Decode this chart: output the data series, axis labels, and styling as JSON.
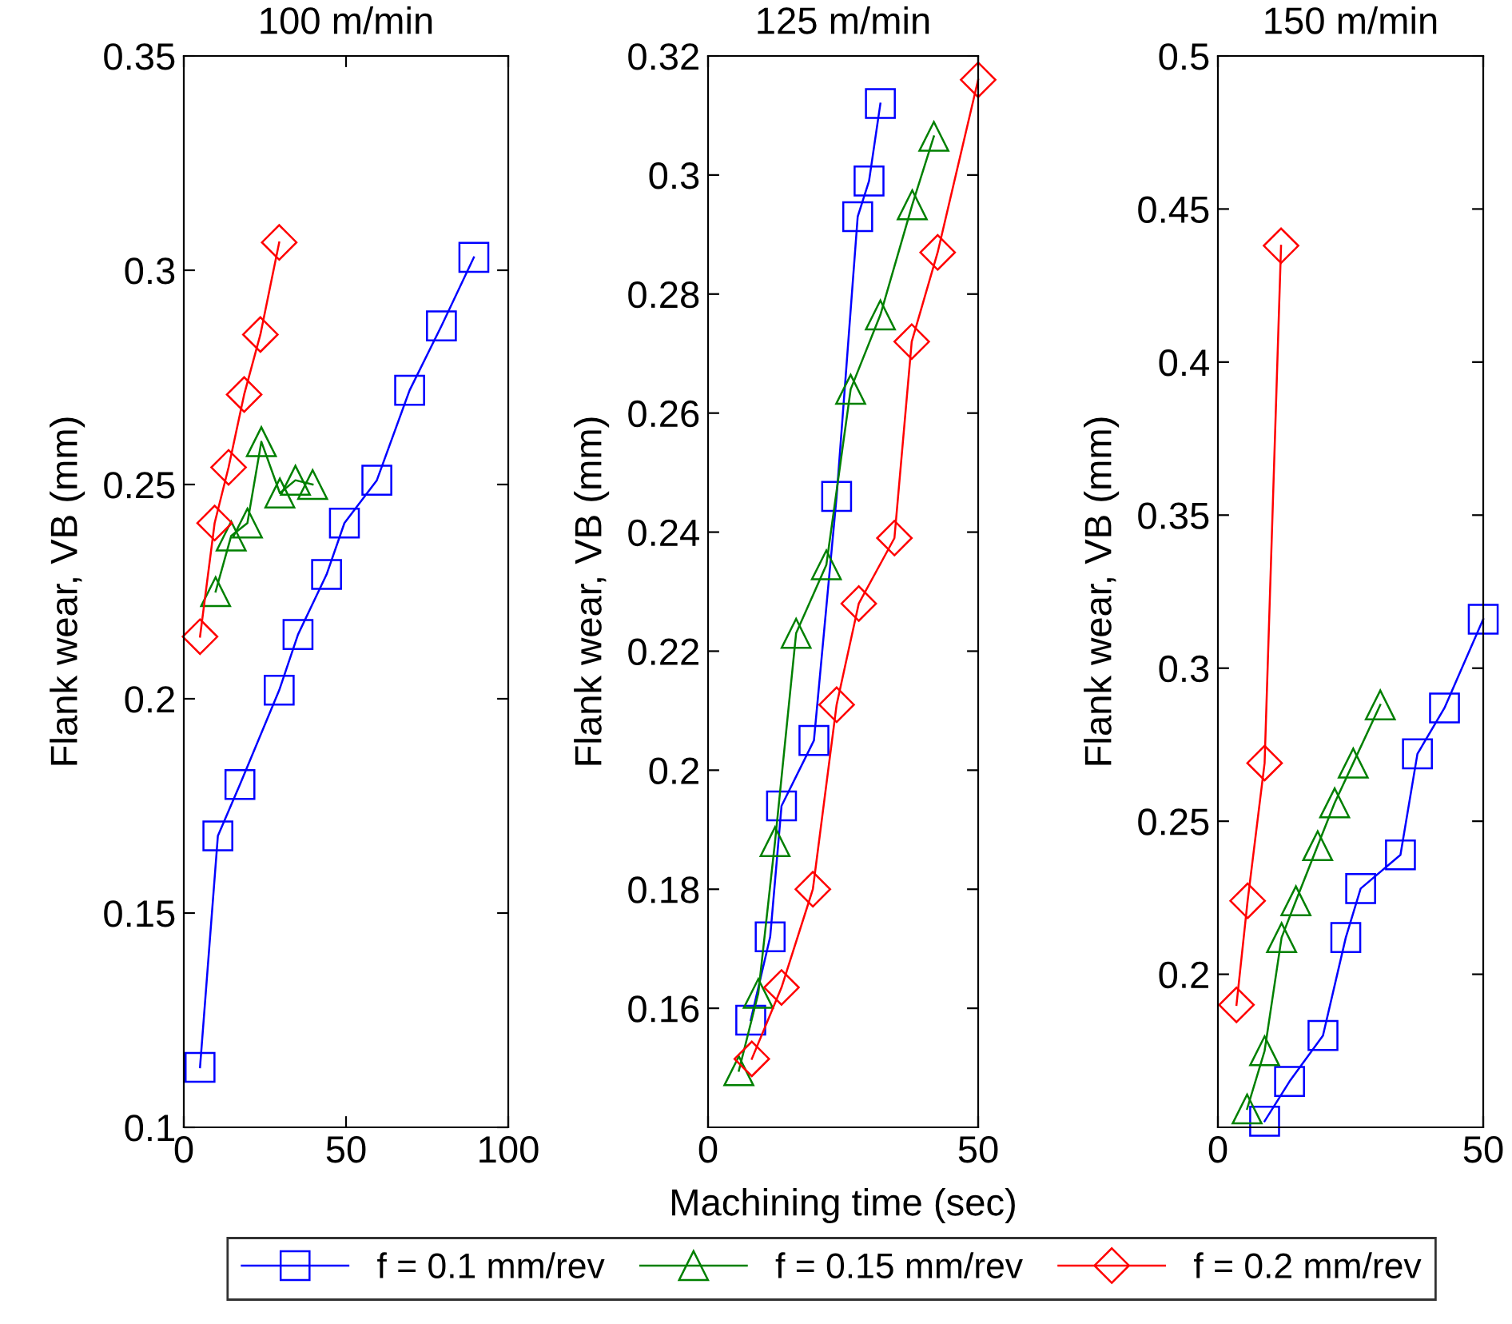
{
  "chart_data": [
    {
      "type": "line",
      "title": "100 m/min",
      "ylabel": "Flank wear, VB (mm)",
      "xlim": [
        0,
        100
      ],
      "xticks": [
        0,
        50,
        100
      ],
      "ylim": [
        0.1,
        0.35
      ],
      "yticks": [
        0.1,
        0.15,
        0.2,
        0.25,
        0.3,
        0.35
      ],
      "grid": false,
      "series": [
        {
          "color": "#0000ff",
          "marker": "square",
          "x": [
            5,
            10.5,
            17.3,
            29.4,
            35.2,
            44,
            49.5,
            59.5,
            69.6,
            79.4,
            89.4
          ],
          "values": [
            0.114,
            0.168,
            0.18,
            0.202,
            0.215,
            0.229,
            0.241,
            0.251,
            0.272,
            0.287,
            0.303
          ]
        },
        {
          "color": "#008000",
          "marker": "triangle",
          "x": [
            9.8,
            14.6,
            19.6,
            23.9,
            29.6,
            34.4,
            39.7
          ],
          "values": [
            0.225,
            0.238,
            0.241,
            0.26,
            0.248,
            0.251,
            0.25
          ]
        },
        {
          "color": "#ff0000",
          "marker": "diamond",
          "x": [
            5,
            9.5,
            13.8,
            18.6,
            23.6,
            29.4
          ],
          "values": [
            0.2145,
            0.241,
            0.254,
            0.271,
            0.285,
            0.3065
          ]
        }
      ]
    },
    {
      "type": "line",
      "title": "125 m/min",
      "xlabel": "Machining time (sec)",
      "ylabel": "Flank wear, VB (mm)",
      "xlim": [
        0,
        50
      ],
      "xticks": [
        0,
        50
      ],
      "ylim": [
        0.14,
        0.32
      ],
      "yticks": [
        0.16,
        0.18,
        0.2,
        0.22,
        0.24,
        0.26,
        0.28,
        0.3,
        0.32
      ],
      "grid": false,
      "legend": "bottom",
      "series": [
        {
          "name": "f = 0.1 mm/rev",
          "color": "#0000ff",
          "marker": "square",
          "x": [
            7.9,
            11.5,
            13.6,
            19.6,
            23.8,
            27.7,
            29.8,
            31.9
          ],
          "values": [
            0.158,
            0.172,
            0.194,
            0.205,
            0.246,
            0.293,
            0.299,
            0.312
          ]
        },
        {
          "name": "f = 0.15 mm/rev",
          "color": "#008000",
          "marker": "triangle",
          "x": [
            5.7,
            9.3,
            12.4,
            16.3,
            21.9,
            26.4,
            31.9,
            37.8,
            41.8
          ],
          "values": [
            0.1495,
            0.1625,
            0.188,
            0.223,
            0.2345,
            0.264,
            0.2765,
            0.295,
            0.3065
          ]
        },
        {
          "name": "f = 0.2 mm/rev",
          "color": "#ff0000",
          "marker": "diamond",
          "x": [
            8.1,
            13.6,
            19.4,
            23.8,
            27.9,
            34.5,
            37.7,
            42.5,
            50
          ],
          "values": [
            0.1515,
            0.1635,
            0.18,
            0.211,
            0.228,
            0.239,
            0.272,
            0.287,
            0.316
          ]
        }
      ]
    },
    {
      "type": "line",
      "title": "150 m/min",
      "ylabel": "Flank wear, VB (mm)",
      "xlim": [
        0,
        50
      ],
      "xticks": [
        0,
        50
      ],
      "ylim": [
        0.15,
        0.5
      ],
      "yticks": [
        0.2,
        0.25,
        0.3,
        0.35,
        0.4,
        0.45,
        0.5
      ],
      "grid": false,
      "series": [
        {
          "color": "#0000ff",
          "marker": "square",
          "x": [
            8.8,
            13.5,
            19.8,
            24.1,
            26.9,
            34.4,
            37.6,
            42.7,
            50
          ],
          "values": [
            0.152,
            0.165,
            0.18,
            0.212,
            0.228,
            0.239,
            0.272,
            0.287,
            0.316
          ]
        },
        {
          "color": "#008000",
          "marker": "triangle",
          "x": [
            5.5,
            8.8,
            12,
            14.7,
            18.8,
            22,
            25.5,
            30.6
          ],
          "values": [
            0.156,
            0.175,
            0.212,
            0.224,
            0.242,
            0.256,
            0.269,
            0.288
          ]
        },
        {
          "color": "#ff0000",
          "marker": "diamond",
          "x": [
            3.5,
            5.6,
            8.8,
            11.9
          ],
          "values": [
            0.19,
            0.224,
            0.269,
            0.438
          ]
        }
      ]
    }
  ]
}
